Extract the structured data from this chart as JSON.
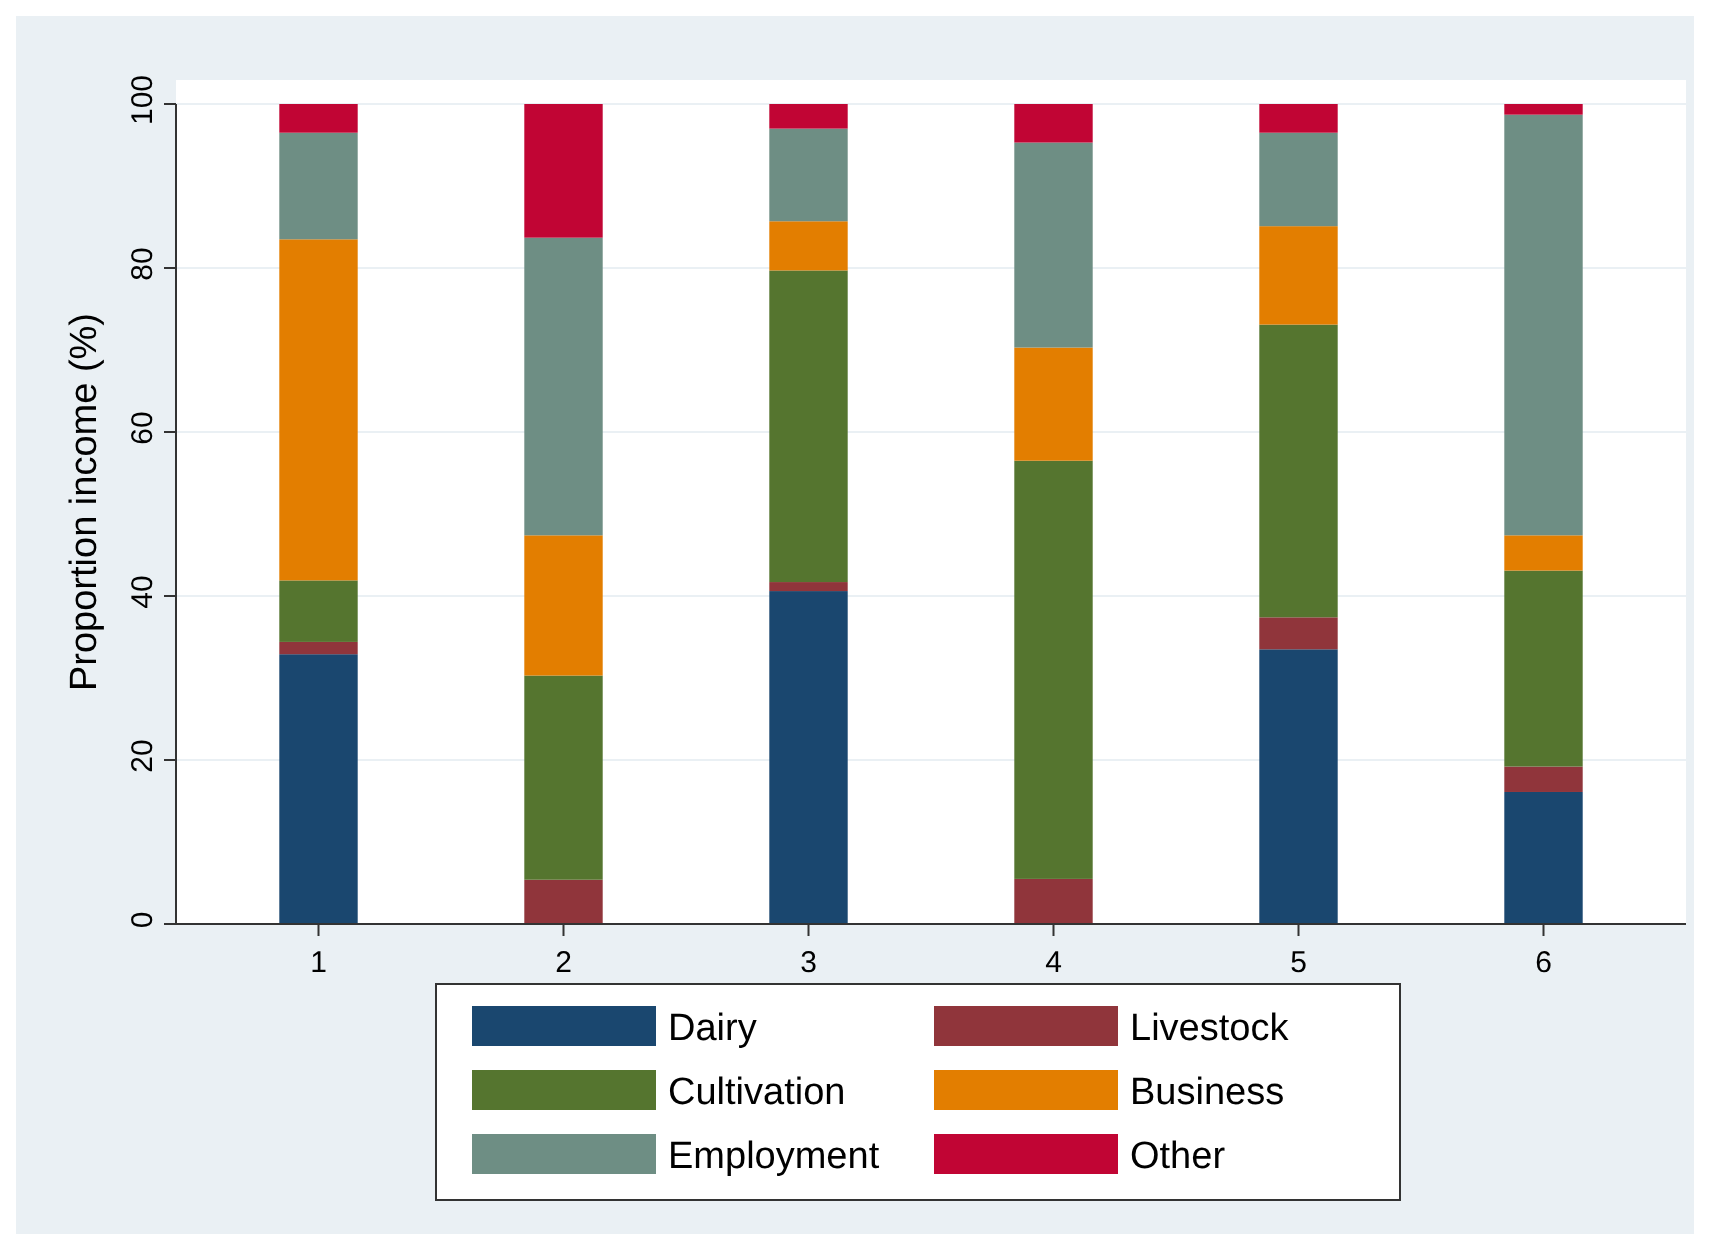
{
  "chart_data": {
    "type": "bar",
    "stacked": true,
    "ylabel": "Proportion income (%)",
    "categories": [
      "1",
      "2",
      "3",
      "4",
      "5",
      "6"
    ],
    "series": [
      {
        "name": "Dairy",
        "color": "#1a476f",
        "values": [
          32.9,
          0,
          40.6,
          0,
          33.5,
          16.1
        ]
      },
      {
        "name": "Livestock",
        "color": "#90353b",
        "values": [
          1.5,
          5.4,
          1.1,
          5.5,
          3.9,
          3.1
        ]
      },
      {
        "name": "Cultivation",
        "color": "#55752f",
        "values": [
          7.5,
          24.9,
          38,
          51,
          35.7,
          23.9
        ]
      },
      {
        "name": "Business",
        "color": "#e37e00",
        "values": [
          41.6,
          17.1,
          6,
          13.8,
          12,
          4.3
        ]
      },
      {
        "name": "Employment",
        "color": "#6e8e84",
        "values": [
          13,
          36.3,
          11.3,
          25,
          11.4,
          51.3
        ]
      },
      {
        "name": "Other",
        "color": "#c10534",
        "values": [
          3.5,
          16.3,
          3,
          4.7,
          3.5,
          1.3
        ]
      }
    ],
    "ylim": [
      0,
      100
    ],
    "yticks": [
      0,
      20,
      40,
      60,
      80,
      100
    ],
    "grid": "y",
    "legend": "bottom"
  }
}
